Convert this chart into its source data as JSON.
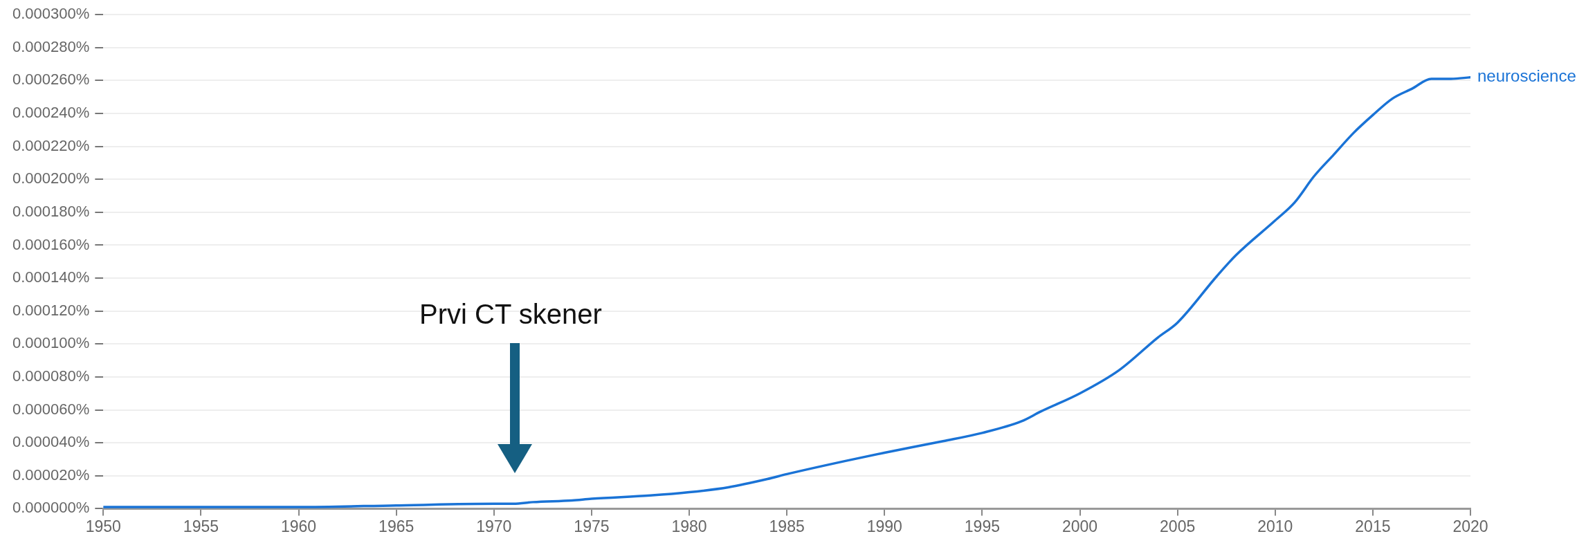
{
  "chart_data": {
    "type": "line",
    "x": [
      1950,
      1955,
      1960,
      1965,
      1970,
      1971,
      1972,
      1974,
      1975,
      1978,
      1980,
      1982,
      1984,
      1985,
      1988,
      1990,
      1993,
      1995,
      1997,
      1998,
      2000,
      2002,
      2004,
      2005,
      2007,
      2008,
      2010,
      2011,
      2012,
      2013,
      2014,
      2015,
      2016,
      2017,
      2018,
      2019,
      2020
    ],
    "series": [
      {
        "name": "neuroscience",
        "color": "#1a73d6",
        "values": [
          1e-06,
          1e-06,
          1e-06,
          2e-06,
          3e-06,
          3e-06,
          4e-06,
          5e-06,
          6e-06,
          8e-06,
          1e-05,
          1.3e-05,
          1.8e-05,
          2.1e-05,
          2.9e-05,
          3.4e-05,
          4.1e-05,
          4.6e-05,
          5.3e-05,
          5.9e-05,
          7e-05,
          8.4e-05,
          0.000104,
          0.000113,
          0.000141,
          0.000154,
          0.000175,
          0.000186,
          0.000202,
          0.000215,
          0.000228,
          0.000239,
          0.000249,
          0.000255,
          0.000261,
          0.000261,
          0.000262
        ]
      }
    ],
    "xlim": [
      1950,
      2020
    ],
    "xticks": [
      1950,
      1955,
      1960,
      1965,
      1970,
      1975,
      1980,
      1985,
      1990,
      1995,
      2000,
      2005,
      2010,
      2015,
      2020
    ],
    "ylim": [
      0,
      0.0003
    ],
    "yticks": [
      {
        "value": 0,
        "label": "0.000000%"
      },
      {
        "value": 2e-05,
        "label": "0.000020%"
      },
      {
        "value": 4e-05,
        "label": "0.000040%"
      },
      {
        "value": 6e-05,
        "label": "0.000060%"
      },
      {
        "value": 8e-05,
        "label": "0.000080%"
      },
      {
        "value": 0.0001,
        "label": "0.000100%"
      },
      {
        "value": 0.00012,
        "label": "0.000120%"
      },
      {
        "value": 0.00014,
        "label": "0.000140%"
      },
      {
        "value": 0.00016,
        "label": "0.000160%"
      },
      {
        "value": 0.00018,
        "label": "0.000180%"
      },
      {
        "value": 0.0002,
        "label": "0.000200%"
      },
      {
        "value": 0.00022,
        "label": "0.000220%"
      },
      {
        "value": 0.00024,
        "label": "0.000240%"
      },
      {
        "value": 0.00026,
        "label": "0.000260%"
      },
      {
        "value": 0.00028,
        "label": "0.000280%"
      },
      {
        "value": 0.0003,
        "label": "0.000300%"
      }
    ],
    "grid": "y",
    "legend": false,
    "marker": "none",
    "line_style": "solid",
    "annotations": [
      "Prvi CT skener"
    ]
  }
}
